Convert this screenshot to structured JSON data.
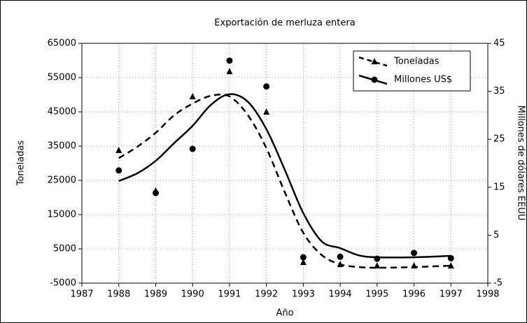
{
  "chart_data": {
    "type": "scatter",
    "title": "Exportación de merluza entera",
    "xlabel": "Año",
    "ylabel": "Toneladas",
    "y2label": "Millones de dólares EEUU",
    "x": [
      1988,
      1989,
      1990,
      1991,
      1992,
      1993,
      1994,
      1995,
      1996,
      1997
    ],
    "x_fit": [
      1988,
      1988.5,
      1989,
      1989.5,
      1990,
      1990.5,
      1991,
      1991.5,
      1992,
      1992.5,
      1993,
      1993.5,
      1994,
      1994.5,
      1995,
      1996,
      1997
    ],
    "series": [
      {
        "name": "Toneladas",
        "color": "#000000",
        "marker": "triangle",
        "linestyle": "dashed",
        "axis": "y",
        "values": [
          33800,
          22000,
          49500,
          56800,
          45000,
          1100,
          500,
          100,
          100,
          100
        ],
        "fit": [
          31500,
          34800,
          38900,
          44000,
          47400,
          49700,
          49500,
          44000,
          34400,
          21500,
          9700,
          3200,
          500,
          -300,
          -500,
          -300,
          100
        ]
      },
      {
        "name": "Millones US$",
        "color": "#000000",
        "marker": "circle",
        "linestyle": "solid",
        "axis": "y2",
        "values": [
          18.5,
          13.8,
          23,
          41.4,
          36,
          0.4,
          0.5,
          0.1,
          1.3,
          0.2
        ],
        "fit": [
          16.3,
          17.9,
          20.5,
          24.2,
          27.8,
          32.2,
          34.4,
          32.8,
          27.1,
          18.6,
          9.6,
          3.7,
          2.3,
          0.8,
          0.4,
          0.4,
          0.7
        ]
      }
    ],
    "xlim": [
      1987,
      1998
    ],
    "xticks": [
      1987,
      1988,
      1989,
      1990,
      1991,
      1992,
      1993,
      1994,
      1995,
      1996,
      1997,
      1998
    ],
    "ylim": [
      -5000,
      65000
    ],
    "yticks": [
      -5000,
      5000,
      15000,
      25000,
      35000,
      45000,
      55000,
      65000
    ],
    "y2lim": [
      -5,
      45
    ],
    "y2ticks": [
      -5,
      5,
      15,
      25,
      35,
      45
    ],
    "grid": true,
    "legend": "upper right"
  }
}
